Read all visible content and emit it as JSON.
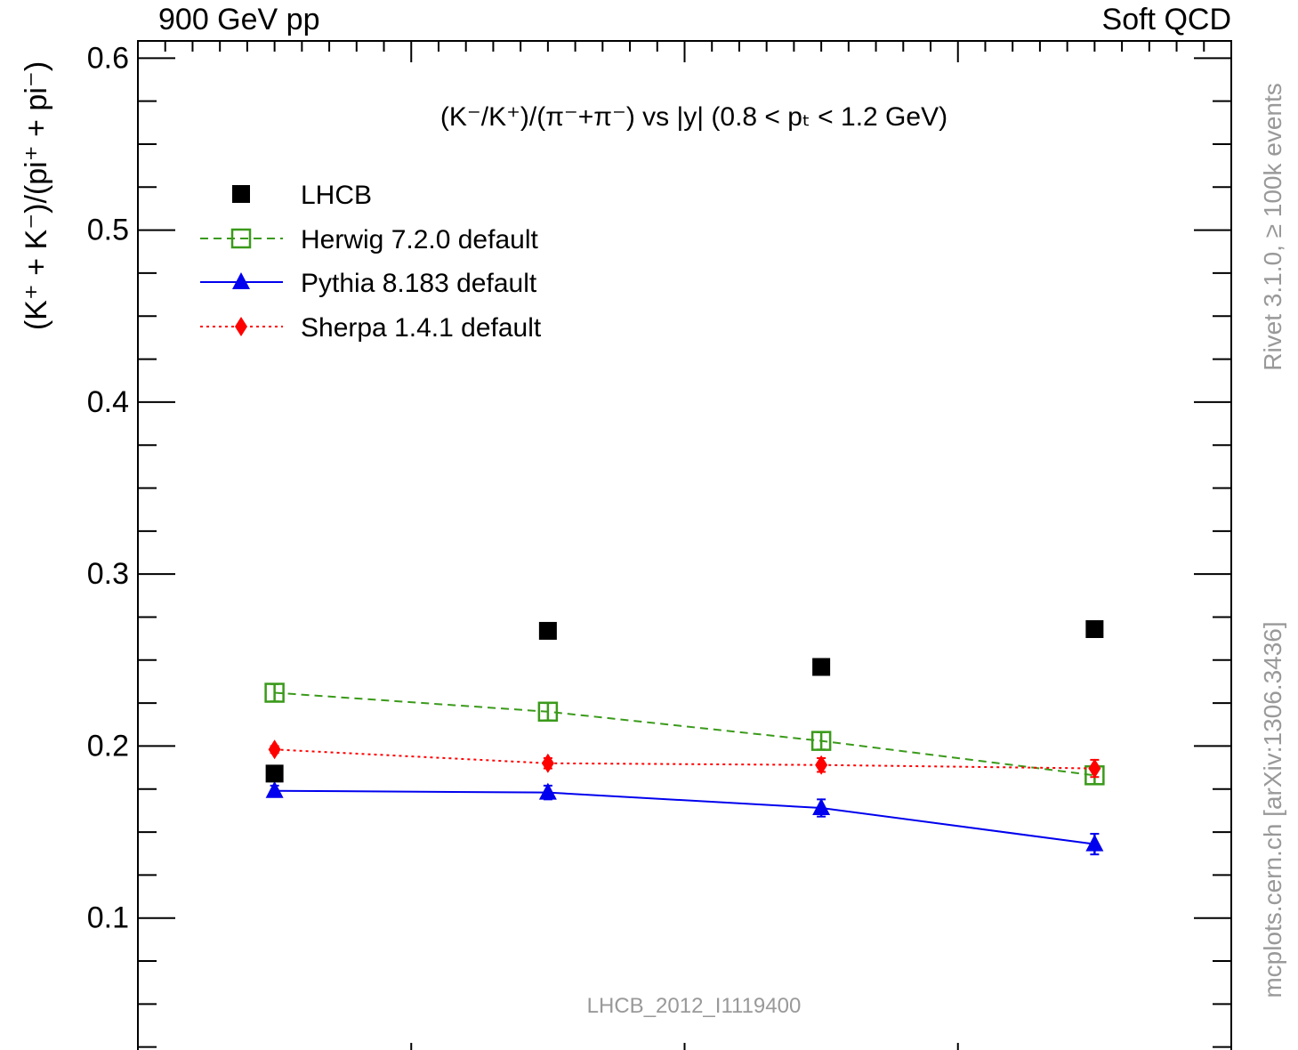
{
  "header": {
    "left": "900 GeV pp",
    "right": "Soft QCD"
  },
  "side": {
    "rivet": "Rivet 3.1.0, ≥ 100k events",
    "source": "mcplots.cern.ch [arXiv:1306.3436]"
  },
  "plot_title": "(K⁻/K⁺)/(π⁻+π⁻) vs |y| (0.8 < pₜ < 1.2 GeV)",
  "analysis_id": "LHCB_2012_I1119400",
  "chart_data": {
    "type": "scatter",
    "title": "(K⁻/K⁺)/(π⁻+π⁻) vs |y| (0.8 < pₜ < 1.2 GeV)",
    "xlabel": "",
    "ylabel": "(K⁺ + K⁻)/(pi⁺ + pi⁻)",
    "xlim": [
      0,
      4
    ],
    "ylim": [
      0.015,
      0.61
    ],
    "x_ticks_labeled": false,
    "y_ticks": [
      "0.1",
      "0.2",
      "0.3",
      "0.4",
      "0.5",
      "0.6"
    ],
    "legend_position": "top-left",
    "x": [
      0.5,
      1.5,
      2.5,
      3.5
    ],
    "series": [
      {
        "name": "LHCB",
        "marker": "filled-square",
        "line": "none",
        "color": "#000000",
        "values": [
          0.184,
          0.267,
          0.246,
          0.268
        ],
        "errors": [
          0,
          0,
          0,
          0
        ]
      },
      {
        "name": "Herwig 7.2.0 default",
        "marker": "open-square",
        "line": "dashed",
        "color": "#3a9a1a",
        "values": [
          0.231,
          0.22,
          0.203,
          0.183
        ],
        "errors": [
          0.005,
          0.005,
          0.005,
          0.005
        ]
      },
      {
        "name": "Pythia 8.183 default",
        "marker": "filled-triangle",
        "line": "solid",
        "color": "#0000ee",
        "values": [
          0.174,
          0.173,
          0.164,
          0.143
        ],
        "errors": [
          0.003,
          0.004,
          0.005,
          0.006
        ]
      },
      {
        "name": "Sherpa 1.4.1 default",
        "marker": "filled-diamond",
        "line": "dotted",
        "color": "#ff0000",
        "values": [
          0.198,
          0.19,
          0.189,
          0.187
        ],
        "errors": [
          0.002,
          0.003,
          0.004,
          0.005
        ]
      }
    ]
  }
}
